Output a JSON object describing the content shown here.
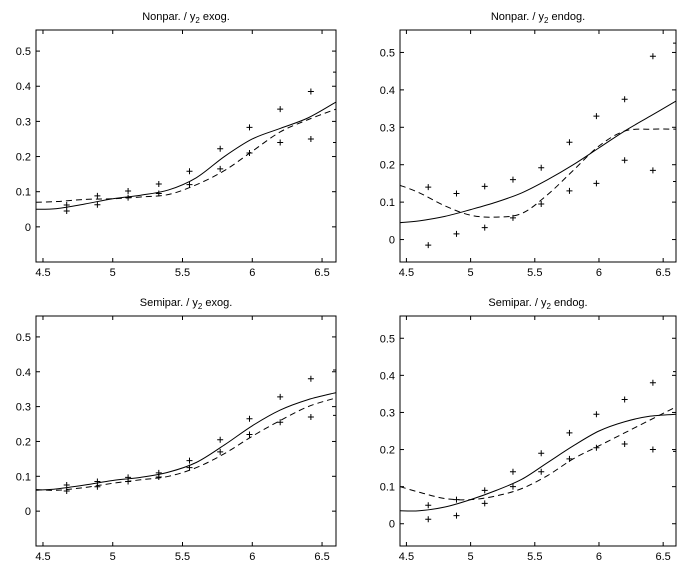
{
  "chart_data": [
    {
      "type": "line",
      "title": "Nonpar. / y",
      "title_sub": "2",
      "title_suffix": " exog.",
      "xlim": [
        4.45,
        6.6
      ],
      "ylim": [
        -0.1,
        0.56
      ],
      "xticks": [
        4.5,
        5,
        5.5,
        6,
        6.5
      ],
      "yticks": [
        0,
        0.1,
        0.2,
        0.3,
        0.4,
        0.5
      ],
      "grid": false,
      "series": [
        {
          "style": "solid",
          "x": [
            4.45,
            4.6,
            4.8,
            5.0,
            5.2,
            5.4,
            5.6,
            5.8,
            6.0,
            6.2,
            6.4,
            6.6
          ],
          "y": [
            0.05,
            0.052,
            0.065,
            0.08,
            0.09,
            0.105,
            0.14,
            0.2,
            0.25,
            0.28,
            0.31,
            0.355
          ]
        },
        {
          "style": "dashed",
          "x": [
            4.45,
            4.6,
            4.8,
            5.0,
            5.2,
            5.4,
            5.6,
            5.8,
            6.0,
            6.2,
            6.4,
            6.6
          ],
          "y": [
            0.07,
            0.072,
            0.078,
            0.08,
            0.085,
            0.092,
            0.12,
            0.16,
            0.215,
            0.27,
            0.305,
            0.335
          ]
        },
        {
          "style": "plus",
          "x": [
            4.67,
            4.67,
            4.89,
            4.89,
            5.11,
            5.11,
            5.33,
            5.33,
            5.55,
            5.55,
            5.77,
            5.77,
            5.98,
            5.98,
            6.2,
            6.2,
            6.42,
            6.42,
            6.6,
            6.6
          ],
          "y": [
            0.062,
            0.045,
            0.088,
            0.063,
            0.102,
            0.083,
            0.122,
            0.095,
            0.158,
            0.12,
            0.222,
            0.165,
            0.283,
            0.21,
            0.335,
            0.24,
            0.385,
            0.25,
            0.44,
            0.24
          ]
        }
      ]
    },
    {
      "type": "line",
      "title": "Nonpar. / y",
      "title_sub": "2",
      "title_suffix": " endog.",
      "xlim": [
        4.45,
        6.6
      ],
      "ylim": [
        -0.06,
        0.56
      ],
      "xticks": [
        4.5,
        5,
        5.5,
        6,
        6.5
      ],
      "yticks": [
        0,
        0.1,
        0.2,
        0.3,
        0.4,
        0.5
      ],
      "grid": false,
      "series": [
        {
          "style": "solid",
          "x": [
            4.45,
            4.6,
            4.8,
            5.0,
            5.2,
            5.4,
            5.6,
            5.8,
            6.0,
            6.2,
            6.4,
            6.6
          ],
          "y": [
            0.045,
            0.05,
            0.062,
            0.08,
            0.1,
            0.125,
            0.16,
            0.2,
            0.245,
            0.29,
            0.33,
            0.37
          ]
        },
        {
          "style": "dashed",
          "x": [
            4.45,
            4.6,
            4.8,
            5.0,
            5.2,
            5.4,
            5.6,
            5.8,
            6.0,
            6.2,
            6.4,
            6.6
          ],
          "y": [
            0.145,
            0.125,
            0.09,
            0.065,
            0.06,
            0.07,
            0.12,
            0.185,
            0.25,
            0.29,
            0.295,
            0.295
          ]
        },
        {
          "style": "plus",
          "x": [
            4.67,
            4.67,
            4.89,
            4.89,
            5.11,
            5.11,
            5.33,
            5.33,
            5.55,
            5.55,
            5.77,
            5.77,
            5.98,
            5.98,
            6.2,
            6.2,
            6.42,
            6.42,
            6.6,
            6.6
          ],
          "y": [
            0.14,
            -0.015,
            0.123,
            0.015,
            0.142,
            0.032,
            0.16,
            0.058,
            0.192,
            0.095,
            0.26,
            0.13,
            0.33,
            0.15,
            0.375,
            0.212,
            0.49,
            0.185,
            0.525,
            0.155
          ]
        }
      ]
    },
    {
      "type": "line",
      "title": "Semipar. / y",
      "title_sub": "2",
      "title_suffix": " exog.",
      "xlim": [
        4.45,
        6.6
      ],
      "ylim": [
        -0.1,
        0.56
      ],
      "xticks": [
        4.5,
        5,
        5.5,
        6,
        6.5
      ],
      "yticks": [
        0,
        0.1,
        0.2,
        0.3,
        0.4,
        0.5
      ],
      "grid": false,
      "series": [
        {
          "style": "solid",
          "x": [
            4.45,
            4.6,
            4.8,
            5.0,
            5.2,
            5.4,
            5.6,
            5.8,
            6.0,
            6.2,
            6.4,
            6.6
          ],
          "y": [
            0.06,
            0.064,
            0.075,
            0.088,
            0.097,
            0.112,
            0.14,
            0.19,
            0.245,
            0.29,
            0.32,
            0.34
          ]
        },
        {
          "style": "dashed",
          "x": [
            4.45,
            4.6,
            4.8,
            5.0,
            5.2,
            5.4,
            5.6,
            5.8,
            6.0,
            6.2,
            6.4,
            6.6
          ],
          "y": [
            0.062,
            0.06,
            0.068,
            0.08,
            0.09,
            0.1,
            0.125,
            0.165,
            0.215,
            0.26,
            0.3,
            0.325
          ]
        },
        {
          "style": "plus",
          "x": [
            4.67,
            4.67,
            4.89,
            4.89,
            5.11,
            5.11,
            5.33,
            5.33,
            5.55,
            5.55,
            5.77,
            5.77,
            5.98,
            5.98,
            6.2,
            6.2,
            6.42,
            6.42,
            6.6,
            6.6
          ],
          "y": [
            0.075,
            0.058,
            0.085,
            0.07,
            0.097,
            0.085,
            0.11,
            0.098,
            0.145,
            0.125,
            0.205,
            0.17,
            0.265,
            0.22,
            0.328,
            0.255,
            0.38,
            0.27,
            0.405,
            0.275
          ]
        }
      ]
    },
    {
      "type": "line",
      "title": "Semipar. / y",
      "title_sub": "2",
      "title_suffix": " endog.",
      "xlim": [
        4.45,
        6.6
      ],
      "ylim": [
        -0.06,
        0.56
      ],
      "xticks": [
        4.5,
        5,
        5.5,
        6,
        6.5
      ],
      "yticks": [
        0,
        0.1,
        0.2,
        0.3,
        0.4,
        0.5
      ],
      "grid": false,
      "series": [
        {
          "style": "solid",
          "x": [
            4.45,
            4.6,
            4.8,
            5.0,
            5.2,
            5.4,
            5.6,
            5.8,
            6.0,
            6.2,
            6.4,
            6.6
          ],
          "y": [
            0.035,
            0.035,
            0.045,
            0.065,
            0.09,
            0.12,
            0.165,
            0.21,
            0.25,
            0.275,
            0.29,
            0.295
          ]
        },
        {
          "style": "dashed",
          "x": [
            4.45,
            4.6,
            4.8,
            5.0,
            5.2,
            5.4,
            5.6,
            5.8,
            6.0,
            6.2,
            6.4,
            6.6
          ],
          "y": [
            0.1,
            0.085,
            0.068,
            0.065,
            0.075,
            0.095,
            0.13,
            0.175,
            0.21,
            0.245,
            0.28,
            0.315
          ]
        },
        {
          "style": "plus",
          "x": [
            4.67,
            4.67,
            4.89,
            4.89,
            5.11,
            5.11,
            5.33,
            5.33,
            5.55,
            5.55,
            5.77,
            5.77,
            5.98,
            5.98,
            6.2,
            6.2,
            6.42,
            6.42,
            6.6,
            6.6
          ],
          "y": [
            0.05,
            0.012,
            0.065,
            0.022,
            0.09,
            0.055,
            0.14,
            0.1,
            0.19,
            0.14,
            0.245,
            0.175,
            0.295,
            0.205,
            0.335,
            0.215,
            0.38,
            0.2,
            0.41,
            0.195
          ]
        }
      ]
    }
  ]
}
